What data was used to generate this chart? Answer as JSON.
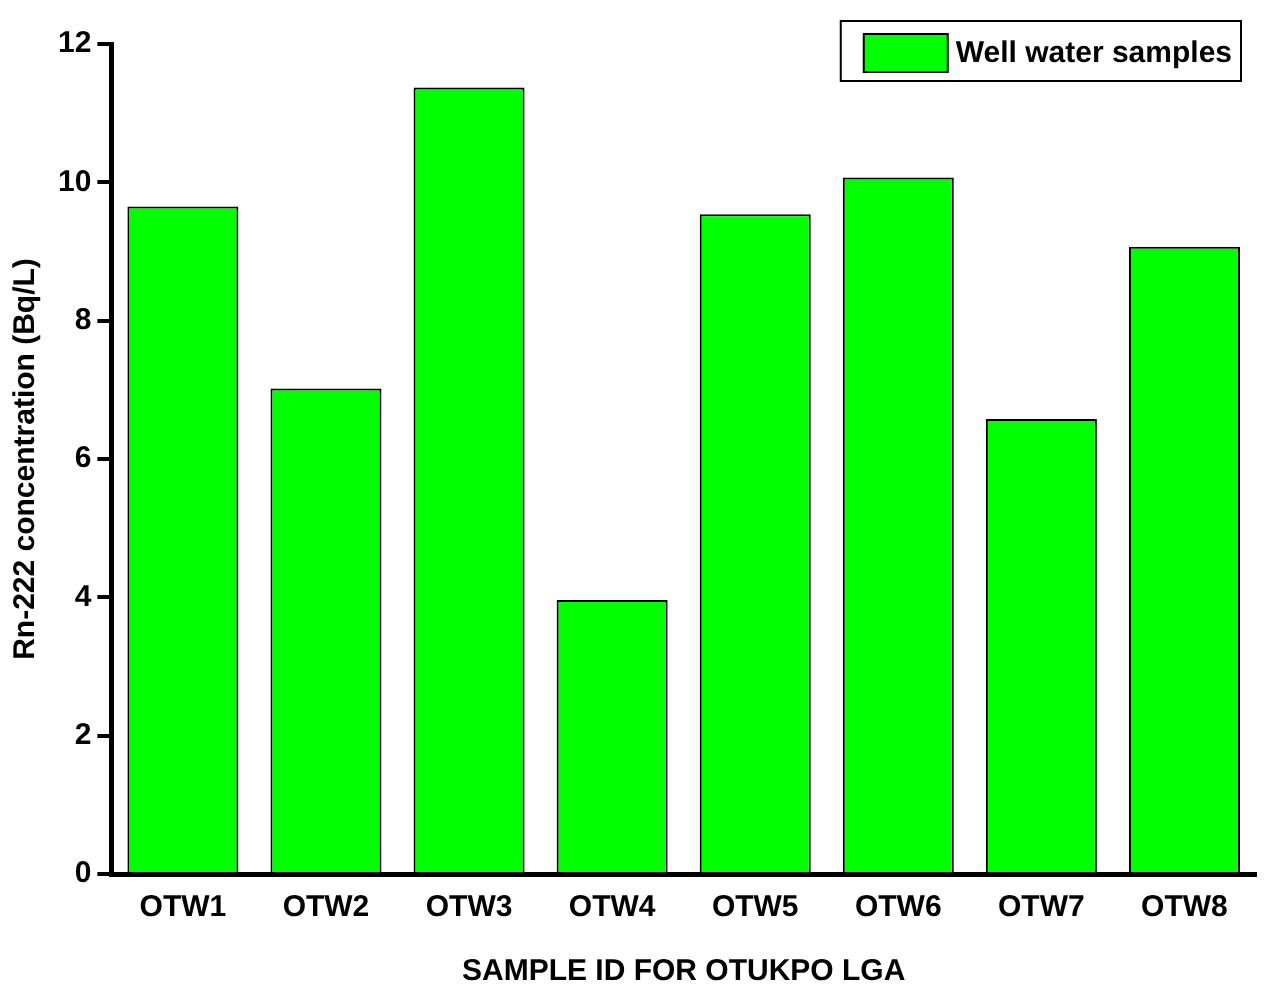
{
  "chart_data": {
    "type": "bar",
    "xlabel": "SAMPLE ID FOR OTUKPO LGA",
    "ylabel": "Rn-222 concentration (Bq/L)",
    "categories": [
      "OTW1",
      "OTW2",
      "OTW3",
      "OTW4",
      "OTW5",
      "OTW6",
      "OTW7",
      "OTW8"
    ],
    "series": [
      {
        "name": "Well water samples",
        "color": "#00ff00",
        "values": [
          9.65,
          7.02,
          11.37,
          3.96,
          9.54,
          10.07,
          6.58,
          9.07
        ]
      }
    ],
    "ylim": [
      0,
      12
    ],
    "yticks": [
      0,
      2,
      4,
      6,
      8,
      10,
      12
    ],
    "grid": false,
    "legend": "top right"
  }
}
